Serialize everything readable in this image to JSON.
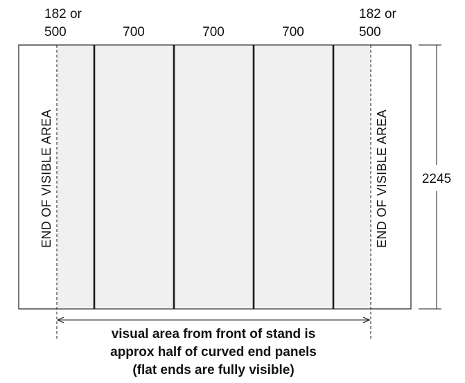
{
  "colors": {
    "line": "#1a1a1a",
    "panel_fill": "#f0f0f0",
    "background": "#ffffff"
  },
  "top_labels": {
    "left_end": [
      "182 or",
      "500"
    ],
    "panel_1": "700",
    "panel_2": "700",
    "panel_3": "700",
    "right_end": [
      "182 or",
      "500"
    ]
  },
  "height_label": "2245",
  "side_labels": {
    "left": "END OF VISIBLE AREA",
    "right": "END OF VISIBLE AREA"
  },
  "caption": [
    "visual area from front of stand is",
    "approx half of curved end panels",
    "(flat ends are fully visible)"
  ]
}
